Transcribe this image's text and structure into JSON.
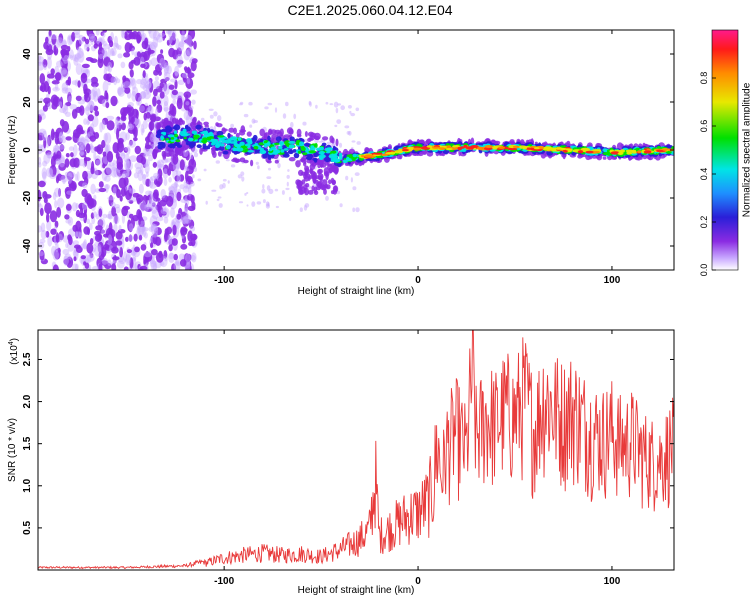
{
  "figure_title": "C2E1.2025.060.04.12.E04",
  "colors": {
    "snr_line": "#e83a3a",
    "colormap": [
      "#ffffff",
      "#c8a8ff",
      "#8a2be2",
      "#2a1fd8",
      "#1e90ff",
      "#00e5e5",
      "#00e000",
      "#e8e800",
      "#ff8c00",
      "#ff1a1a",
      "#ff1a8c"
    ]
  },
  "chart_data": [
    {
      "type": "heatmap",
      "title": "",
      "xlabel": "Height of straight line (km)",
      "ylabel": "Frequency (Hz)",
      "xlim": [
        -196,
        132
      ],
      "ylim": [
        -50,
        50
      ],
      "x_ticks": [
        -100,
        0,
        100
      ],
      "y_ticks": [
        -40,
        -20,
        0,
        20,
        40
      ],
      "grid": false,
      "colorbar": {
        "label": "Normalized spectral amplitude",
        "range": [
          0,
          1
        ],
        "ticks": [
          "0.0",
          "0.2",
          "0.4",
          "0.6",
          "0.8"
        ]
      },
      "features": {
        "scatter_region_x": [
          -196,
          -115
        ],
        "scatter_region_y": [
          -50,
          50
        ],
        "central_band_x": [
          -135,
          132
        ],
        "central_band_center": [
          [
            -135,
            5
          ],
          [
            -115,
            6
          ],
          [
            -100,
            3
          ],
          [
            -80,
            1
          ],
          [
            -60,
            1
          ],
          [
            -45,
            -2
          ],
          [
            -40,
            -4
          ],
          [
            -20,
            -2
          ],
          [
            0,
            1
          ],
          [
            20,
            1
          ],
          [
            50,
            1
          ],
          [
            80,
            0
          ],
          [
            100,
            -1
          ],
          [
            132,
            0
          ]
        ],
        "description_levels": "amplitude grows toward positive heights; red peaks above 0 km"
      }
    },
    {
      "type": "line",
      "title": "",
      "xlabel": "Height of straight line (km)",
      "ylabel": "SNR (10 * v/v)",
      "y_multiplier": "(x10",
      "y_multiplier_exp": "4",
      "y_multiplier_close": ")",
      "xlim": [
        -196,
        132
      ],
      "ylim": [
        0,
        2.85
      ],
      "x_ticks": [
        -100,
        0,
        100
      ],
      "y_ticks": [
        "0.5",
        "1.0",
        "1.5",
        "2.0",
        "2.5"
      ],
      "grid": false,
      "series": [
        {
          "x": [
            -196,
            -150,
            -120,
            -110,
            -100,
            -90,
            -80,
            -70,
            -60,
            -50,
            -40,
            -30,
            -25,
            -22,
            -20,
            -15,
            -10,
            -5,
            0,
            5,
            8,
            10,
            12,
            15,
            20,
            25,
            28,
            30,
            35,
            40,
            45,
            50,
            55,
            60,
            65,
            70,
            75,
            80,
            85,
            90,
            95,
            100,
            105,
            110,
            115,
            120,
            125,
            130,
            132
          ],
          "values": [
            0.03,
            0.03,
            0.05,
            0.1,
            0.18,
            0.22,
            0.25,
            0.22,
            0.24,
            0.2,
            0.3,
            0.45,
            0.6,
            1.35,
            0.5,
            0.6,
            0.7,
            0.8,
            0.85,
            1.0,
            1.2,
            1.9,
            1.3,
            1.8,
            2.0,
            1.7,
            2.85,
            1.9,
            2.2,
            2.1,
            2.3,
            2.2,
            2.5,
            2.0,
            2.5,
            2.3,
            2.2,
            2.3,
            2.1,
            2.0,
            1.9,
            2.0,
            1.8,
            1.9,
            1.7,
            1.6,
            1.6,
            1.75,
            1.8
          ]
        }
      ]
    }
  ]
}
